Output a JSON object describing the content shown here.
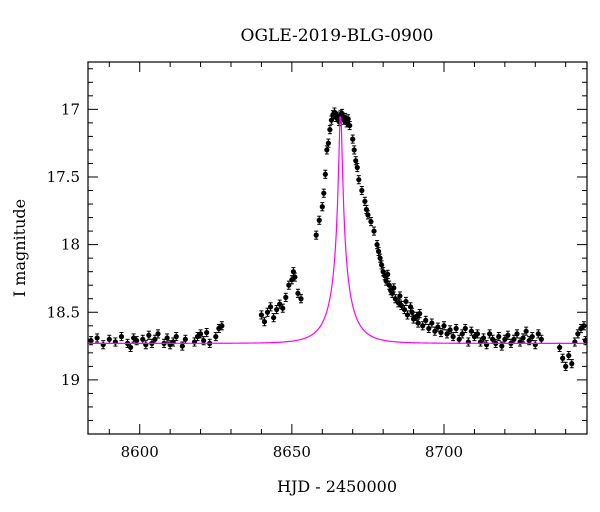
{
  "chart_data": {
    "type": "scatter",
    "title": "OGLE-2019-BLG-0900",
    "xlabel": "HJD - 2450000",
    "ylabel": "I magnitude",
    "xlim": [
      8583,
      8747
    ],
    "ylim": [
      19.4,
      16.65
    ],
    "y_axis_inverted": true,
    "x_ticks": [
      8600,
      8650,
      8700
    ],
    "y_ticks": [
      17,
      17.5,
      18,
      18.5,
      19
    ],
    "x_tick_labels": [
      "8600",
      "8650",
      "8700"
    ],
    "y_tick_labels": [
      "17",
      "17.5",
      "18",
      "18.5",
      "19"
    ],
    "grid": false,
    "legend": "none",
    "colors": {
      "data": "#000000",
      "model": "#ff00ff",
      "frame": "#000000"
    },
    "series": [
      {
        "type": "scatter_with_errorbars",
        "points": [
          [
            8584,
            18.71
          ],
          [
            8586,
            18.69
          ],
          [
            8588,
            18.74
          ],
          [
            8590,
            18.7
          ],
          [
            8592,
            18.72
          ],
          [
            8594,
            18.68
          ],
          [
            8596,
            18.73
          ],
          [
            8597,
            18.76
          ],
          [
            8598,
            18.69
          ],
          [
            8599,
            18.71
          ],
          [
            8601,
            18.7
          ],
          [
            8602,
            18.74
          ],
          [
            8603,
            18.67
          ],
          [
            8604,
            18.73
          ],
          [
            8605,
            18.7
          ],
          [
            8606,
            18.66
          ],
          [
            8608,
            18.73
          ],
          [
            8609,
            18.69
          ],
          [
            8610,
            18.74
          ],
          [
            8611,
            18.72
          ],
          [
            8612,
            18.68
          ],
          [
            8614,
            18.75
          ],
          [
            8615,
            18.7
          ],
          [
            8618,
            18.72
          ],
          [
            8619,
            18.68
          ],
          [
            8620,
            18.66
          ],
          [
            8621,
            18.71
          ],
          [
            8622,
            18.65
          ],
          [
            8623,
            18.73
          ],
          [
            8625,
            18.68
          ],
          [
            8626,
            18.62
          ],
          [
            8627,
            18.6
          ],
          [
            8640,
            18.52
          ],
          [
            8641,
            18.57
          ],
          [
            8642,
            18.5
          ],
          [
            8643,
            18.46
          ],
          [
            8644,
            18.54
          ],
          [
            8645,
            18.48
          ],
          [
            8646,
            18.44
          ],
          [
            8647,
            18.47
          ],
          [
            8648,
            18.39
          ],
          [
            8649,
            18.3
          ],
          [
            8650,
            18.26
          ],
          [
            8650.5,
            18.2
          ],
          [
            8651,
            18.24
          ],
          [
            8652,
            18.36
          ],
          [
            8653,
            18.4
          ],
          [
            8658,
            17.93
          ],
          [
            8659,
            17.82
          ],
          [
            8660,
            17.72
          ],
          [
            8660.5,
            17.62
          ],
          [
            8661,
            17.48
          ],
          [
            8661.5,
            17.3
          ],
          [
            8662,
            17.25
          ],
          [
            8662.5,
            17.15
          ],
          [
            8663,
            17.08
          ],
          [
            8663.5,
            17.04
          ],
          [
            8664,
            17.02
          ],
          [
            8664.5,
            17.06
          ],
          [
            8665,
            17.05
          ],
          [
            8665.5,
            17.09
          ],
          [
            8666,
            17.04
          ],
          [
            8666.5,
            17.03
          ],
          [
            8667,
            17.08
          ],
          [
            8667.5,
            17.06
          ],
          [
            8668,
            17.1
          ],
          [
            8668.5,
            17.07
          ],
          [
            8669,
            17.12
          ],
          [
            8670,
            17.22
          ],
          [
            8670.5,
            17.3
          ],
          [
            8671,
            17.38
          ],
          [
            8671.5,
            17.43
          ],
          [
            8672,
            17.52
          ],
          [
            8673,
            17.6
          ],
          [
            8674,
            17.68
          ],
          [
            8674.5,
            17.74
          ],
          [
            8675,
            17.78
          ],
          [
            8676,
            17.83
          ],
          [
            8677,
            17.9
          ],
          [
            8678,
            18.0
          ],
          [
            8678.5,
            18.05
          ],
          [
            8679,
            18.1
          ],
          [
            8679.5,
            18.15
          ],
          [
            8680,
            18.2
          ],
          [
            8680.5,
            18.23
          ],
          [
            8681,
            18.27
          ],
          [
            8681.5,
            18.22
          ],
          [
            8682,
            18.3
          ],
          [
            8682.5,
            18.34
          ],
          [
            8683,
            18.36
          ],
          [
            8683.5,
            18.32
          ],
          [
            8684,
            18.4
          ],
          [
            8685,
            18.43
          ],
          [
            8685.5,
            18.38
          ],
          [
            8686,
            18.45
          ],
          [
            8687,
            18.48
          ],
          [
            8687.5,
            18.42
          ],
          [
            8688,
            18.52
          ],
          [
            8689,
            18.46
          ],
          [
            8689.5,
            18.5
          ],
          [
            8690,
            18.55
          ],
          [
            8691,
            18.53
          ],
          [
            8691.5,
            18.58
          ],
          [
            8692,
            18.51
          ],
          [
            8693,
            18.6
          ],
          [
            8694,
            18.56
          ],
          [
            8695,
            18.62
          ],
          [
            8696,
            18.58
          ],
          [
            8697,
            18.64
          ],
          [
            8698,
            18.61
          ],
          [
            8699,
            18.65
          ],
          [
            8700,
            18.6
          ],
          [
            8701,
            18.66
          ],
          [
            8702,
            18.63
          ],
          [
            8703,
            18.68
          ],
          [
            8704,
            18.62
          ],
          [
            8705,
            18.7
          ],
          [
            8706,
            18.66
          ],
          [
            8707,
            18.62
          ],
          [
            8708,
            18.72
          ],
          [
            8709,
            18.64
          ],
          [
            8710,
            18.68
          ],
          [
            8711,
            18.66
          ],
          [
            8712,
            18.72
          ],
          [
            8713,
            18.69
          ],
          [
            8714,
            18.74
          ],
          [
            8715,
            18.66
          ],
          [
            8716,
            18.7
          ],
          [
            8717,
            18.73
          ],
          [
            8718,
            18.68
          ],
          [
            8719,
            18.75
          ],
          [
            8720,
            18.7
          ],
          [
            8721,
            18.67
          ],
          [
            8722,
            18.73
          ],
          [
            8723,
            18.7
          ],
          [
            8724,
            18.66
          ],
          [
            8725,
            18.72
          ],
          [
            8726,
            18.69
          ],
          [
            8727,
            18.64
          ],
          [
            8728,
            18.71
          ],
          [
            8729,
            18.68
          ],
          [
            8730,
            18.74
          ],
          [
            8731,
            18.66
          ],
          [
            8732,
            18.7
          ],
          [
            8738,
            18.76
          ],
          [
            8739,
            18.84
          ],
          [
            8740,
            18.9
          ],
          [
            8741,
            18.82
          ],
          [
            8742,
            18.88
          ],
          [
            8743,
            18.72
          ],
          [
            8744,
            18.66
          ],
          [
            8745,
            18.62
          ],
          [
            8746,
            18.6
          ],
          [
            8746.5,
            18.71
          ]
        ],
        "error_bar_mag": 0.03
      },
      {
        "type": "model_curve",
        "t0": 8666,
        "tE": 8,
        "baseline_mag": 18.73,
        "peak_mag": 16.99,
        "fs": 0.25,
        "x_range": [
          8583,
          8747
        ]
      }
    ]
  }
}
